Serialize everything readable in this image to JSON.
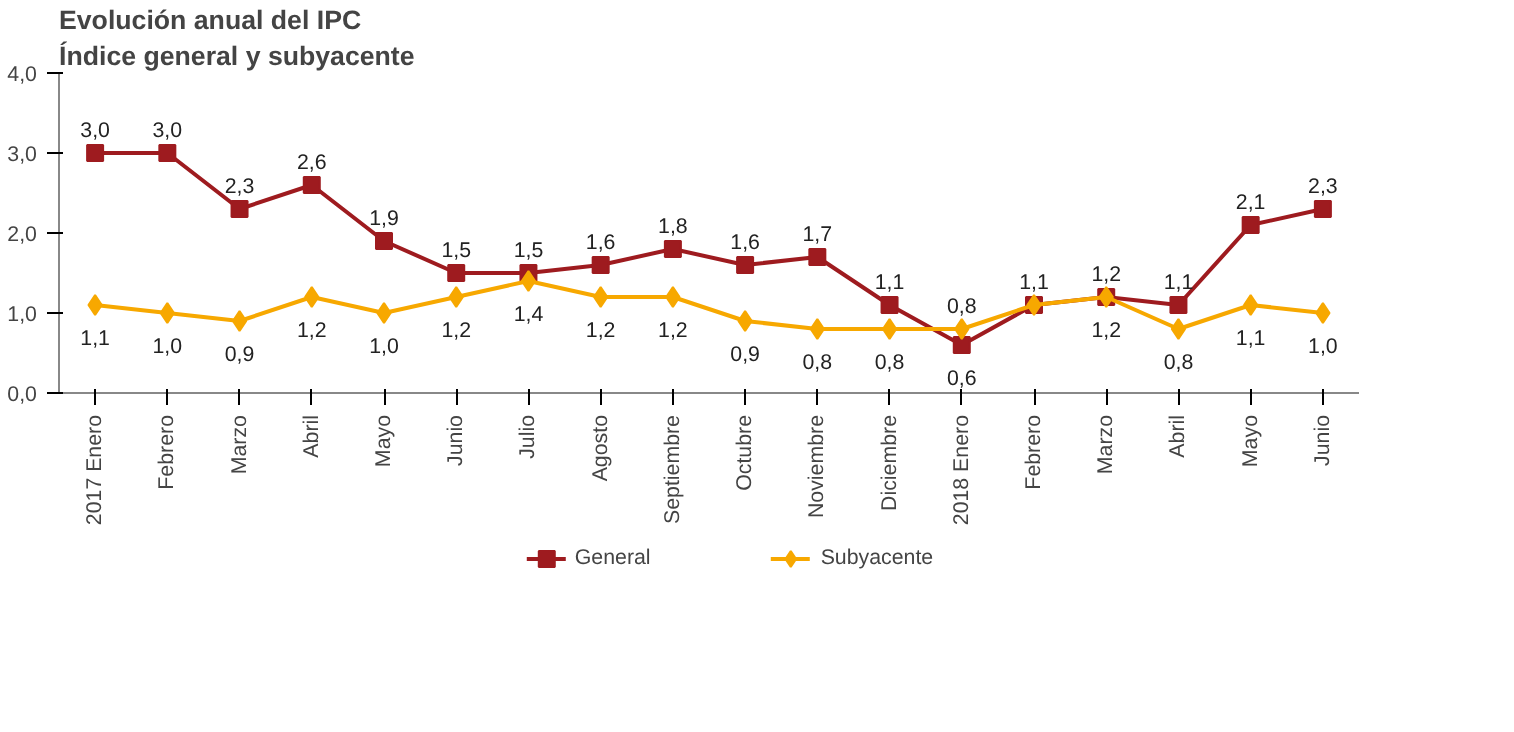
{
  "chart_data": {
    "type": "line",
    "title": "Evolución anual del IPC",
    "subtitle": "Índice general y subyacente",
    "categories": [
      "2017 Enero",
      "Febrero",
      "Marzo",
      "Abril",
      "Mayo",
      "Junio",
      "Julio",
      "Agosto",
      "Septiembre",
      "Octubre",
      "Noviembre",
      "Diciembre",
      "2018 Enero",
      "Febrero",
      "Marzo",
      "Abril",
      "Mayo",
      "Junio"
    ],
    "series": [
      {
        "name": "General",
        "color": "#9e1b1f",
        "marker": "square",
        "values": [
          3.0,
          3.0,
          2.3,
          2.6,
          1.9,
          1.5,
          1.5,
          1.6,
          1.8,
          1.6,
          1.7,
          1.1,
          0.6,
          1.1,
          1.2,
          1.1,
          2.1,
          2.3
        ],
        "value_labels": [
          "3,0",
          "3,0",
          "2,3",
          "2,6",
          "1,9",
          "1,5",
          "1,5",
          "1,6",
          "1,8",
          "1,6",
          "1,7",
          "1,1",
          "0,6",
          "1,1",
          "1,2",
          "1,1",
          "2,1",
          "2,3"
        ]
      },
      {
        "name": "Subyacente",
        "color": "#f7a800",
        "marker": "diamond",
        "values": [
          1.1,
          1.0,
          0.9,
          1.2,
          1.0,
          1.2,
          1.4,
          1.2,
          1.2,
          0.9,
          0.8,
          0.8,
          0.8,
          1.1,
          1.2,
          0.8,
          1.1,
          1.0
        ],
        "value_labels": [
          "1,1",
          "1,0",
          "0,9",
          "1,2",
          "1,0",
          "1,2",
          "1,4",
          "1,2",
          "1,2",
          "0,9",
          "0,8",
          "0,8",
          "0,8",
          null,
          "1,2",
          "0,8",
          "1,1",
          "1,0"
        ]
      }
    ],
    "ylim": [
      0,
      4
    ],
    "yticks": [
      {
        "value": 0,
        "label": "0,0"
      },
      {
        "value": 1,
        "label": "1,0"
      },
      {
        "value": 2,
        "label": "2,0"
      },
      {
        "value": 3,
        "label": "3,0"
      },
      {
        "value": 4,
        "label": "4,0"
      }
    ],
    "grid": false,
    "legend": "bottom",
    "line_style": "solid"
  }
}
